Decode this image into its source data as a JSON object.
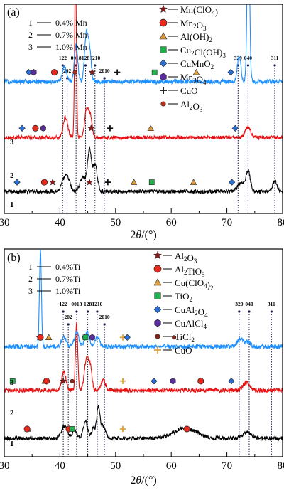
{
  "chart_data": [
    {
      "panel": "(a)",
      "type": "line",
      "xlabel_parts": [
        "2",
        "θ",
        "/(°)"
      ],
      "xlim": [
        30,
        80
      ],
      "xticks": [
        "30",
        "40",
        "50",
        "60",
        "70",
        "80"
      ],
      "y_axis_labels_shown": false,
      "composition_legend": [
        {
          "index": "1",
          "text": "0.4% Mn"
        },
        {
          "index": "2",
          "text": "0.7% Mn"
        },
        {
          "index": "3",
          "text": "1.0% Mn"
        }
      ],
      "phase_legend": [
        {
          "marker": "star",
          "color": "#8b1a1a",
          "parts": [
            {
              "t": "Mn(ClO"
            },
            {
              "t": "4",
              "sub": true
            },
            {
              "t": ")"
            }
          ]
        },
        {
          "marker": "circle",
          "color": "#e8291c",
          "parts": [
            {
              "t": "Mn"
            },
            {
              "t": "2",
              "sub": true
            },
            {
              "t": "O"
            },
            {
              "t": "3",
              "sub": true
            }
          ]
        },
        {
          "marker": "triangle",
          "color": "#e0a040",
          "parts": [
            {
              "t": "Al(OH)"
            },
            {
              "t": "2",
              "sub": true
            }
          ]
        },
        {
          "marker": "square",
          "color": "#22b14c",
          "parts": [
            {
              "t": "Cu"
            },
            {
              "t": "2",
              "sub": true
            },
            {
              "t": "Cl(OH)"
            },
            {
              "t": "3",
              "sub": true
            }
          ]
        },
        {
          "marker": "diamond",
          "color": "#2b6fd6",
          "parts": [
            {
              "t": "CuMnO"
            },
            {
              "t": "2",
              "sub": true
            }
          ]
        },
        {
          "marker": "hexagon",
          "color": "#5b2c9b",
          "parts": [
            {
              "t": "Mn"
            },
            {
              "t": "3",
              "sub": true
            },
            {
              "t": "O"
            },
            {
              "t": "4",
              "sub": true
            }
          ]
        },
        {
          "marker": "plus",
          "color": "#111111",
          "parts": [
            {
              "t": "CuO"
            }
          ]
        },
        {
          "marker": "smallcircle",
          "color": "#b8321a",
          "parts": [
            {
              "t": "Al"
            },
            {
              "t": "2",
              "sub": true
            },
            {
              "t": "O"
            },
            {
              "t": "3",
              "sub": true
            }
          ]
        }
      ],
      "reference_planes": [
        {
          "label": "122",
          "x": 40.5
        },
        {
          "label": "202",
          "x": 41.3
        },
        {
          "label": "0018",
          "x": 42.9
        },
        {
          "label": "128",
          "x": 44.6
        },
        {
          "label": "1210",
          "x": 46.3
        },
        {
          "label": "2010",
          "x": 48.0
        },
        {
          "label": "320",
          "x": 72.0
        },
        {
          "label": "040",
          "x": 73.8
        },
        {
          "label": "311",
          "x": 78.6
        }
      ],
      "series": [
        {
          "name": "1",
          "color": "#000000",
          "baseline": 0.08,
          "noise": 0.009,
          "peaks": [
            [
              40.8,
              0.06,
              0.5
            ],
            [
              41.5,
              0.045,
              0.4
            ],
            [
              44.1,
              0.07,
              0.5
            ],
            [
              45.3,
              0.2,
              0.35
            ],
            [
              46.3,
              0.13,
              0.4
            ],
            [
              72.5,
              0.04,
              0.6
            ],
            [
              73.8,
              0.1,
              0.4
            ],
            [
              78.6,
              0.05,
              0.4
            ]
          ],
          "markers": [
            {
              "shape": "diamond",
              "x": 32.3
            },
            {
              "shape": "circle",
              "x": 37.2
            },
            {
              "shape": "star",
              "x": 38.7
            },
            {
              "shape": "star",
              "x": 45.3
            },
            {
              "shape": "plus",
              "x": 48.6
            },
            {
              "shape": "triangle",
              "x": 53.3
            },
            {
              "shape": "square",
              "x": 56.5
            },
            {
              "shape": "triangle",
              "x": 64.0
            },
            {
              "shape": "diamond",
              "x": 70.9
            }
          ]
        },
        {
          "name": "2",
          "color": "#e81010",
          "baseline": 0.345,
          "noise": 0.009,
          "peaks": [
            [
              41.0,
              0.1,
              0.4
            ],
            [
              42.8,
              0.82,
              0.16
            ],
            [
              44.8,
              0.14,
              0.35
            ],
            [
              45.5,
              0.1,
              0.3
            ],
            [
              73.8,
              0.05,
              0.5
            ]
          ],
          "markers": [
            {
              "shape": "diamond",
              "x": 33.2
            },
            {
              "shape": "circle",
              "x": 35.6
            },
            {
              "shape": "hexagon",
              "x": 37.0
            },
            {
              "shape": "star",
              "x": 45.6
            },
            {
              "shape": "plus",
              "x": 49.0
            },
            {
              "shape": "triangle",
              "x": 56.3
            },
            {
              "shape": "diamond",
              "x": 71.5
            }
          ]
        },
        {
          "name": "3",
          "color": "#1e90ff",
          "baseline": 0.62,
          "noise": 0.011,
          "peaks": [
            [
              40.8,
              0.07,
              0.4
            ],
            [
              42.9,
              0.18,
              0.3
            ],
            [
              44.7,
              0.22,
              0.3
            ],
            [
              45.3,
              0.16,
              0.3
            ],
            [
              72.2,
              0.13,
              0.3
            ],
            [
              73.85,
              0.83,
              0.22
            ]
          ],
          "markers": [
            {
              "shape": "diamond",
              "x": 34.4
            },
            {
              "shape": "hexagon",
              "x": 35.3
            },
            {
              "shape": "circle",
              "x": 39.0
            },
            {
              "shape": "smallcircle",
              "x": 42.7
            },
            {
              "shape": "star",
              "x": 45.8
            },
            {
              "shape": "plus",
              "x": 50.3
            },
            {
              "shape": "square",
              "x": 57.0
            },
            {
              "shape": "triangle",
              "x": 64.5
            },
            {
              "shape": "diamond",
              "x": 70.7
            }
          ]
        }
      ]
    },
    {
      "panel": "(b)",
      "type": "line",
      "xlabel_parts": [
        "2",
        "θ",
        "/(°)"
      ],
      "xlim": [
        30,
        80
      ],
      "xticks": [
        "30",
        "40",
        "50",
        "60",
        "70",
        "80"
      ],
      "y_axis_labels_shown": false,
      "composition_legend": [
        {
          "index": "1",
          "text": "0.4%Ti"
        },
        {
          "index": "2",
          "text": "0.7%Ti"
        },
        {
          "index": "3",
          "text": "1.0%Ti"
        }
      ],
      "phase_legend": [
        {
          "marker": "star",
          "color": "#8b1a1a",
          "parts": [
            {
              "t": "Al"
            },
            {
              "t": "2",
              "sub": true
            },
            {
              "t": "O"
            },
            {
              "t": "3",
              "sub": true
            }
          ]
        },
        {
          "marker": "circle",
          "color": "#e8291c",
          "parts": [
            {
              "t": "Al"
            },
            {
              "t": "2",
              "sub": true
            },
            {
              "t": "TiO"
            },
            {
              "t": "5",
              "sub": true
            }
          ]
        },
        {
          "marker": "triangle",
          "color": "#e0a040",
          "parts": [
            {
              "t": "Cu(ClO"
            },
            {
              "t": "4",
              "sub": true
            },
            {
              "t": ")"
            },
            {
              "t": "2",
              "sub": true
            }
          ]
        },
        {
          "marker": "square",
          "color": "#22b14c",
          "parts": [
            {
              "t": "TiO"
            },
            {
              "t": "2",
              "sub": true
            }
          ]
        },
        {
          "marker": "diamond",
          "color": "#2b6fd6",
          "parts": [
            {
              "t": "CuAl"
            },
            {
              "t": "2",
              "sub": true
            },
            {
              "t": "O"
            },
            {
              "t": "4",
              "sub": true
            }
          ]
        },
        {
          "marker": "hexagon",
          "color": "#5b2c9b",
          "parts": [
            {
              "t": "CuAlCl"
            },
            {
              "t": "4",
              "sub": true
            }
          ]
        },
        {
          "marker": "smallcircle",
          "color": "#8b2a1a",
          "parts": [
            {
              "t": "TiCl"
            },
            {
              "t": "2",
              "sub": true
            }
          ]
        },
        {
          "marker": "plus",
          "color": "#e0a040",
          "parts": [
            {
              "t": "CuO"
            }
          ]
        }
      ],
      "reference_planes": [
        {
          "label": "122",
          "x": 40.6
        },
        {
          "label": "202",
          "x": 41.5
        },
        {
          "label": "0018",
          "x": 43.0
        },
        {
          "label": "128",
          "x": 45.0
        },
        {
          "label": "1210",
          "x": 46.7
        },
        {
          "label": "2010",
          "x": 48.0
        },
        {
          "label": "320",
          "x": 72.2
        },
        {
          "label": "040",
          "x": 74.0
        },
        {
          "label": "311",
          "x": 78.0
        }
      ],
      "series": [
        {
          "name": "1",
          "color": "#000000",
          "baseline": 0.07,
          "noise": 0.009,
          "peaks": [
            [
              40.8,
              0.06,
              0.5
            ],
            [
              42.6,
              0.04,
              0.4
            ],
            [
              44.6,
              0.08,
              0.4
            ],
            [
              46.0,
              0.05,
              0.3
            ],
            [
              46.9,
              0.15,
              0.3
            ],
            [
              47.8,
              0.06,
              0.4
            ],
            [
              62.5,
              0.05,
              2.0
            ],
            [
              73.6,
              0.03,
              0.8
            ]
          ],
          "markers": [
            {
              "shape": "triangle",
              "x": 34.2
            },
            {
              "shape": "circle",
              "x": 34.1
            },
            {
              "shape": "circle",
              "x": 41.6
            },
            {
              "shape": "square",
              "x": 42.2
            },
            {
              "shape": "plus",
              "x": 51.3
            },
            {
              "shape": "circle",
              "x": 62.8
            }
          ]
        },
        {
          "name": "2",
          "color": "#e81010",
          "baseline": 0.305,
          "noise": 0.01,
          "peaks": [
            [
              40.7,
              0.09,
              0.4
            ],
            [
              43.0,
              0.33,
              0.2
            ],
            [
              44.8,
              0.16,
              0.4
            ],
            [
              45.5,
              0.09,
              0.3
            ],
            [
              47.8,
              0.05,
              0.4
            ],
            [
              73.5,
              0.04,
              0.6
            ]
          ],
          "markers": [
            {
              "shape": "square",
              "x": 31.5
            },
            {
              "shape": "triangle",
              "x": 37.3
            },
            {
              "shape": "circle",
              "x": 37.6
            },
            {
              "shape": "star",
              "x": 40.6
            },
            {
              "shape": "smallcircle",
              "x": 42.2
            },
            {
              "shape": "plus",
              "x": 51.3
            },
            {
              "shape": "diamond",
              "x": 56.9
            },
            {
              "shape": "hexagon",
              "x": 60.3
            },
            {
              "shape": "circle",
              "x": 65.3
            },
            {
              "shape": "diamond",
              "x": 70.8
            }
          ]
        },
        {
          "name": "3",
          "color": "#1e90ff",
          "baseline": 0.52,
          "noise": 0.011,
          "peaks": [
            [
              36.5,
              0.47,
              0.18
            ],
            [
              40.7,
              0.05,
              0.4
            ],
            [
              43.0,
              0.07,
              0.4
            ],
            [
              44.9,
              0.07,
              0.4
            ],
            [
              46.7,
              0.05,
              0.4
            ],
            [
              72.4,
              0.04,
              0.5
            ],
            [
              73.8,
              0.025,
              0.4
            ]
          ],
          "markers": [
            {
              "shape": "star",
              "x": 36.3
            },
            {
              "shape": "circle",
              "x": 36.5
            },
            {
              "shape": "triangle",
              "x": 38.0
            },
            {
              "shape": "diamond",
              "x": 44.5
            },
            {
              "shape": "square",
              "x": 44.6
            },
            {
              "shape": "hexagon",
              "x": 45.8
            },
            {
              "shape": "plus",
              "x": 51.3
            },
            {
              "shape": "diamond",
              "x": 52.1
            },
            {
              "shape": "smallcircle",
              "x": 60.5
            }
          ]
        }
      ]
    }
  ]
}
